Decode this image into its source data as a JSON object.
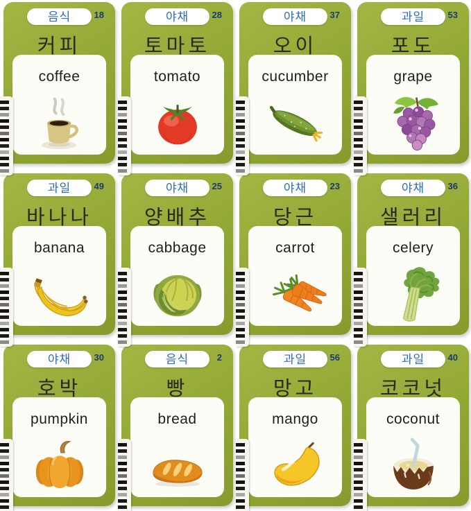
{
  "palette": {
    "card_green": "#93a936",
    "pill_bg": "#ffffff",
    "category_blue": "#2e6cb5",
    "number_navy": "#1d3a70",
    "korean_text": "#2a2a20",
    "english_text": "#1e1e1c",
    "panel_bg": "#fdfdf8",
    "binding_bg": "#f7f5ee"
  },
  "cards": [
    {
      "category": "음식",
      "number": "18",
      "korean": "커피",
      "english": "coffee",
      "illustration": "coffee"
    },
    {
      "category": "야채",
      "number": "28",
      "korean": "토마토",
      "english": "tomato",
      "illustration": "tomato"
    },
    {
      "category": "야채",
      "number": "37",
      "korean": "오이",
      "english": "cucumber",
      "illustration": "cucumber"
    },
    {
      "category": "과일",
      "number": "53",
      "korean": "포도",
      "english": "grape",
      "illustration": "grape"
    },
    {
      "category": "과일",
      "number": "49",
      "korean": "바나나",
      "english": "banana",
      "illustration": "banana"
    },
    {
      "category": "야채",
      "number": "25",
      "korean": "양배추",
      "english": "cabbage",
      "illustration": "cabbage"
    },
    {
      "category": "야채",
      "number": "23",
      "korean": "당근",
      "english": "carrot",
      "illustration": "carrot"
    },
    {
      "category": "야채",
      "number": "36",
      "korean": "샐러리",
      "english": "celery",
      "illustration": "celery"
    },
    {
      "category": "야채",
      "number": "30",
      "korean": "호박",
      "english": "pumpkin",
      "illustration": "pumpkin"
    },
    {
      "category": "음식",
      "number": "2",
      "korean": "빵",
      "english": "bread",
      "illustration": "bread"
    },
    {
      "category": "과일",
      "number": "56",
      "korean": "망고",
      "english": "mango",
      "illustration": "mango"
    },
    {
      "category": "과일",
      "number": "40",
      "korean": "코코넛",
      "english": "coconut",
      "illustration": "coconut"
    }
  ]
}
